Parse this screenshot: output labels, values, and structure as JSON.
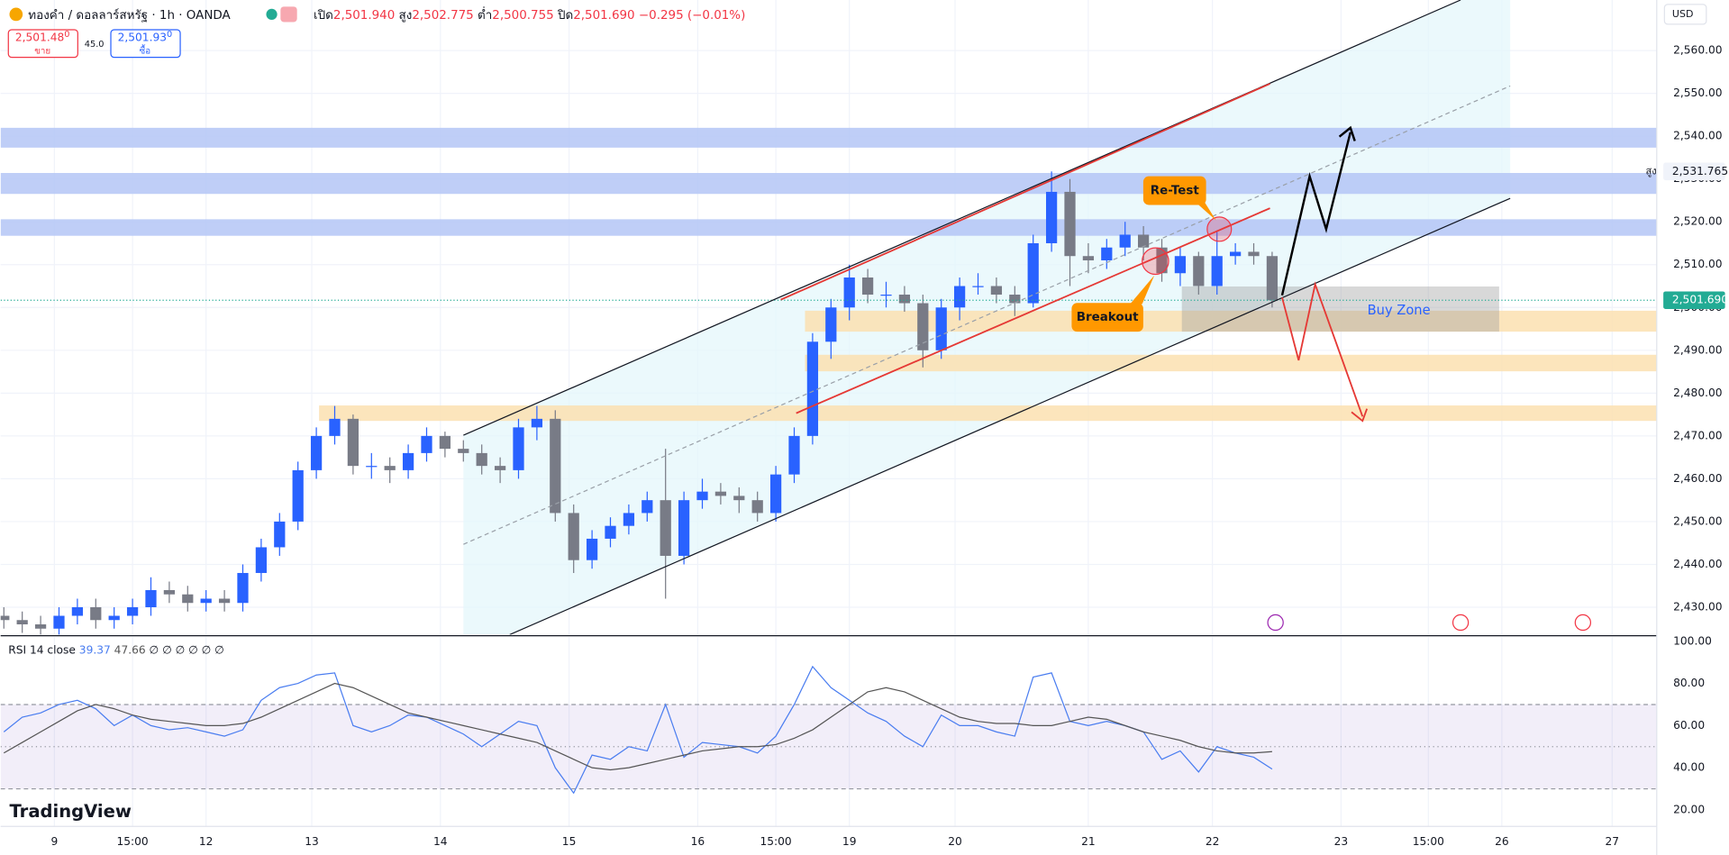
{
  "header": {
    "symbol": "ทองคำ / ดอลลาร์สหรัฐ · 1h · OANDA",
    "ohlc": [
      {
        "label": "เปิด",
        "value": "2,501.940"
      },
      {
        "label": "สูง",
        "value": "2,502.775"
      },
      {
        "label": "ต่ำ",
        "value": "2,500.755"
      },
      {
        "label": "ปิด",
        "value": "2,501.690"
      }
    ],
    "change": "−0.295 (−0.01%)",
    "sell": {
      "price": "2,501.48",
      "sup": "0",
      "label": "ขาย"
    },
    "spread": "45.0",
    "buy": {
      "price": "2,501.93",
      "sup": "0",
      "label": "ซื้อ"
    },
    "currency": "USD",
    "high_tag": "สูง",
    "logo": "TradingView"
  },
  "annotations": {
    "retest": "Re-Test",
    "breakout": "Breakout",
    "buy_zone": "Buy Zone"
  },
  "chart_data": [
    {
      "type": "candlestick",
      "x": [
        0,
        4,
        8,
        12,
        16,
        20,
        24,
        28,
        32,
        36,
        40,
        44,
        48,
        52,
        56,
        60,
        64,
        68,
        72,
        76,
        80,
        84,
        88,
        92,
        96,
        100,
        104,
        108,
        112,
        116,
        120,
        124,
        128,
        132,
        136,
        140,
        144,
        148,
        152,
        156,
        160,
        164,
        168,
        172,
        176,
        180,
        184,
        188,
        192,
        196,
        200,
        204,
        208,
        212,
        216,
        220,
        224,
        228,
        232,
        236,
        240,
        244,
        248,
        252,
        256,
        260,
        264,
        268,
        272,
        276
      ],
      "open": [
        2428,
        2427,
        2426,
        2425,
        2428,
        2430,
        2427,
        2428,
        2430,
        2434,
        2433,
        2431,
        2432,
        2431,
        2438,
        2444,
        2450,
        2462,
        2470,
        2474,
        2463,
        2463,
        2462,
        2466,
        2470,
        2467,
        2466,
        2463,
        2462,
        2472,
        2474,
        2452,
        2441,
        2446,
        2449,
        2452,
        2455,
        2442,
        2455,
        2457,
        2456,
        2455,
        2452,
        2461,
        2470,
        2492,
        2500,
        2507,
        2503,
        2503,
        2501,
        2490,
        2500,
        2505,
        2505,
        2503,
        2501,
        2515,
        2527,
        2512,
        2511,
        2514,
        2517,
        2514,
        2508,
        2512,
        2505,
        2512,
        2513,
        2512
      ],
      "high": [
        2430,
        2429,
        2428,
        2430,
        2432,
        2432,
        2430,
        2432,
        2437,
        2436,
        2435,
        2434,
        2434,
        2440,
        2446,
        2452,
        2464,
        2472,
        2477,
        2475,
        2466,
        2465,
        2468,
        2472,
        2471,
        2469,
        2468,
        2465,
        2474,
        2477,
        2476,
        2454,
        2448,
        2451,
        2454,
        2457,
        2467,
        2457,
        2460,
        2459,
        2458,
        2457,
        2463,
        2472,
        2494,
        2502,
        2510,
        2509,
        2506,
        2505,
        2503,
        2502,
        2507,
        2508,
        2507,
        2505,
        2517,
        2531.765,
        2530,
        2515,
        2516,
        2520,
        2519,
        2516,
        2514,
        2513,
        2518,
        2515,
        2515,
        2513
      ],
      "low": [
        2425,
        2424,
        2423,
        2423,
        2426,
        2425,
        2425,
        2426,
        2428,
        2431,
        2429,
        2429,
        2429,
        2429,
        2436,
        2442,
        2448,
        2460,
        2468,
        2461,
        2460,
        2459,
        2460,
        2464,
        2465,
        2464,
        2461,
        2459,
        2460,
        2469,
        2450,
        2438,
        2439,
        2444,
        2447,
        2450,
        2432,
        2440,
        2453,
        2454,
        2452,
        2450,
        2450,
        2459,
        2468,
        2488,
        2497,
        2501,
        2500,
        2499,
        2486,
        2488,
        2497,
        2503,
        2501,
        2498,
        2500,
        2513,
        2505,
        2508,
        2509,
        2512,
        2511,
        2506,
        2505,
        2503,
        2503,
        2510,
        2510,
        2500
      ],
      "close": [
        2427,
        2426,
        2425,
        2428,
        2430,
        2427,
        2428,
        2430,
        2434,
        2433,
        2431,
        2432,
        2431,
        2438,
        2444,
        2450,
        2462,
        2470,
        2474,
        2463,
        2463,
        2462,
        2466,
        2470,
        2467,
        2466,
        2463,
        2462,
        2472,
        2474,
        2452,
        2441,
        2446,
        2449,
        2452,
        2455,
        2442,
        2455,
        2457,
        2456,
        2455,
        2452,
        2461,
        2470,
        2492,
        2500,
        2507,
        2503,
        2503,
        2501,
        2490,
        2500,
        2505,
        2505,
        2503,
        2501,
        2515,
        2527,
        2512,
        2511,
        2514,
        2517,
        2514,
        2508,
        2512,
        2505,
        2512,
        2513,
        2512,
        2501.69
      ],
      "up_color": "#2962ff",
      "down_color": "#787b86",
      "xlim": [
        -0.7,
        359.7
      ],
      "xticks": [
        {
          "value": 11,
          "label": "9"
        },
        {
          "value": 28,
          "label": "15:00"
        },
        {
          "value": 44,
          "label": "12"
        },
        {
          "value": 67,
          "label": "13"
        },
        {
          "value": 95,
          "label": "14"
        },
        {
          "value": 123,
          "label": "15"
        },
        {
          "value": 151,
          "label": "16"
        },
        {
          "value": 168,
          "label": "15:00"
        },
        {
          "value": 184,
          "label": "19"
        },
        {
          "value": 207,
          "label": "20"
        },
        {
          "value": 236,
          "label": "21"
        },
        {
          "value": 263,
          "label": "22"
        },
        {
          "value": 291,
          "label": "23"
        },
        {
          "value": 310,
          "label": "15:00"
        },
        {
          "value": 326,
          "label": "26"
        },
        {
          "value": 350,
          "label": "27"
        }
      ],
      "ylim": [
        2423.6,
        2571.8
      ],
      "yticks": [
        {
          "value": 2430,
          "label": "2,430.00"
        },
        {
          "value": 2440,
          "label": "2,440.00"
        },
        {
          "value": 2450,
          "label": "2,450.00"
        },
        {
          "value": 2460,
          "label": "2,460.00"
        },
        {
          "value": 2470,
          "label": "2,470.00"
        },
        {
          "value": 2480,
          "label": "2,480.00"
        },
        {
          "value": 2490,
          "label": "2,490.00"
        },
        {
          "value": 2500,
          "label": "2,500.00"
        },
        {
          "value": 2510,
          "label": "2,510.00"
        },
        {
          "value": 2520,
          "label": "2,520.00"
        },
        {
          "value": 2530,
          "label": "2,530.00"
        },
        {
          "value": 2540,
          "label": "2,540.00"
        },
        {
          "value": 2550,
          "label": "2,550.00"
        },
        {
          "value": 2560,
          "label": "2,560.00"
        }
      ],
      "last_price": {
        "value": 2501.69,
        "label": "2,501.690",
        "color": "#22ab94"
      },
      "high_marker": {
        "value": 2531.765,
        "label": "2,531.765"
      },
      "grid": true
    },
    {
      "type": "line",
      "title": "RSI 14 close",
      "extra": "∅ ∅ ∅ ∅ ∅ ∅",
      "x": [
        0,
        4,
        8,
        12,
        16,
        20,
        24,
        28,
        32,
        36,
        40,
        44,
        48,
        52,
        56,
        60,
        64,
        68,
        72,
        76,
        80,
        84,
        88,
        92,
        96,
        100,
        104,
        108,
        112,
        116,
        120,
        124,
        128,
        132,
        136,
        140,
        144,
        148,
        152,
        156,
        160,
        164,
        168,
        172,
        176,
        180,
        184,
        188,
        192,
        196,
        200,
        204,
        208,
        212,
        216,
        220,
        224,
        228,
        232,
        236,
        240,
        244,
        248,
        252,
        256,
        260,
        264,
        268,
        272,
        276
      ],
      "series": [
        {
          "name": "RSI",
          "color": "#4a7df0",
          "values": [
            57,
            64,
            66,
            70,
            72,
            68,
            60,
            65,
            60,
            58,
            59,
            57,
            55,
            58,
            72,
            78,
            80,
            84,
            85,
            60,
            57,
            60,
            65,
            64,
            60,
            56,
            50,
            56,
            62,
            60,
            40,
            28,
            46,
            44,
            50,
            48,
            70,
            45,
            52,
            51,
            50,
            47,
            55,
            70,
            88,
            78,
            72,
            66,
            62,
            55,
            50,
            65,
            60,
            60,
            57,
            55,
            83,
            85,
            62,
            60,
            62,
            60,
            57,
            44,
            48,
            38,
            50,
            47,
            45,
            39.37
          ]
        },
        {
          "name": "MA",
          "color": "#555555",
          "values": [
            47,
            52,
            57,
            62,
            67,
            70,
            68,
            65,
            63,
            62,
            61,
            60,
            60,
            61,
            64,
            68,
            72,
            76,
            80,
            78,
            74,
            70,
            66,
            64,
            62,
            60,
            58,
            56,
            54,
            52,
            48,
            44,
            40,
            39,
            40,
            42,
            44,
            46,
            48,
            49,
            50,
            50,
            51,
            54,
            58,
            64,
            70,
            76,
            78,
            76,
            72,
            68,
            64,
            62,
            61,
            61,
            60,
            60,
            62,
            64,
            63,
            60,
            57,
            55,
            53,
            50,
            48,
            47,
            47,
            47.66
          ]
        }
      ],
      "xlim": [
        -0.7,
        359.7
      ],
      "ylim": [
        12.2,
        102.1
      ],
      "yticks": [
        {
          "value": 20,
          "label": "20.00"
        },
        {
          "value": 40,
          "label": "40.00"
        },
        {
          "value": 60,
          "label": "60.00"
        },
        {
          "value": 80,
          "label": "80.00"
        },
        {
          "value": 100,
          "label": "100.00"
        }
      ],
      "levels": [
        30,
        50,
        70
      ],
      "grid": false
    }
  ]
}
